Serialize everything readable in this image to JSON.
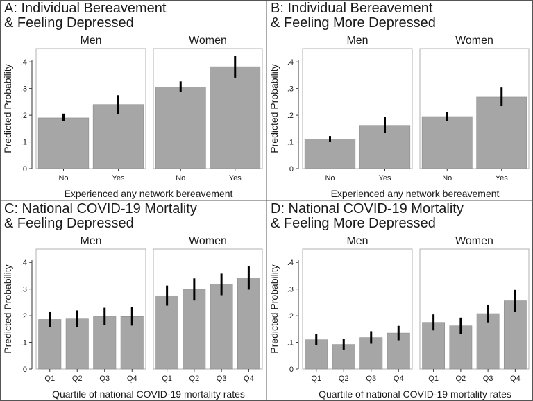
{
  "figure": {
    "y_axis_title": "Predicted Probability",
    "y_ticks": [
      0,
      0.1,
      0.2,
      0.3,
      0.4
    ],
    "y_tick_labels": [
      "0",
      ".1",
      ".2",
      ".3",
      ".4"
    ],
    "colors": {
      "bar": "#a6a6a6",
      "bar_edge": "#8c8c8c",
      "error": "#000000",
      "border": "#555555"
    }
  },
  "chart_data": [
    {
      "type": "bar",
      "id": "A",
      "title_line1": "A: Individual Bereavement",
      "title_line2": "& Feeling Depressed",
      "xlabel": "Experienced any network bereavement",
      "ylabel": "Predicted Probability",
      "ylim": [
        0,
        0.45
      ],
      "categories": [
        "No",
        "Yes"
      ],
      "series": [
        {
          "name": "Men",
          "values": [
            0.19,
            0.24
          ],
          "ci_low": [
            0.178,
            0.203
          ],
          "ci_high": [
            0.206,
            0.275
          ]
        },
        {
          "name": "Women",
          "values": [
            0.306,
            0.382
          ],
          "ci_low": [
            0.287,
            0.341
          ],
          "ci_high": [
            0.327,
            0.423
          ]
        }
      ]
    },
    {
      "type": "bar",
      "id": "B",
      "title_line1": "B: Individual Bereavement",
      "title_line2": "& Feeling More Depressed",
      "xlabel": "Experienced any network bereavement",
      "ylabel": "Predicted Probability",
      "ylim": [
        0,
        0.45
      ],
      "categories": [
        "No",
        "Yes"
      ],
      "series": [
        {
          "name": "Men",
          "values": [
            0.11,
            0.162
          ],
          "ci_low": [
            0.1,
            0.133
          ],
          "ci_high": [
            0.122,
            0.193
          ]
        },
        {
          "name": "Women",
          "values": [
            0.195,
            0.268
          ],
          "ci_low": [
            0.178,
            0.234
          ],
          "ci_high": [
            0.213,
            0.304
          ]
        }
      ]
    },
    {
      "type": "bar",
      "id": "C",
      "title_line1": "C: National COVID-19 Mortality",
      "title_line2": "& Feeling Depressed",
      "xlabel": "Quartile of national COVID-19 mortality rates",
      "ylabel": "Predicted Probability",
      "ylim": [
        0,
        0.45
      ],
      "categories": [
        "Q1",
        "Q2",
        "Q3",
        "Q4"
      ],
      "series": [
        {
          "name": "Men",
          "values": [
            0.186,
            0.188,
            0.198,
            0.197
          ],
          "ci_low": [
            0.158,
            0.157,
            0.166,
            0.163
          ],
          "ci_high": [
            0.216,
            0.22,
            0.23,
            0.232
          ]
        },
        {
          "name": "Women",
          "values": [
            0.275,
            0.298,
            0.318,
            0.342
          ],
          "ci_low": [
            0.238,
            0.257,
            0.277,
            0.298
          ],
          "ci_high": [
            0.313,
            0.34,
            0.358,
            0.386
          ]
        }
      ]
    },
    {
      "type": "bar",
      "id": "D",
      "title_line1": "D: National COVID-19 Mortality",
      "title_line2": "& Feeling More Depressed",
      "xlabel": "Quartile of national COVID-19 mortality rates",
      "ylabel": "Predicted Probability",
      "ylim": [
        0,
        0.45
      ],
      "categories": [
        "Q1",
        "Q2",
        "Q3",
        "Q4"
      ],
      "series": [
        {
          "name": "Men",
          "values": [
            0.11,
            0.092,
            0.118,
            0.135
          ],
          "ci_low": [
            0.09,
            0.073,
            0.095,
            0.108
          ],
          "ci_high": [
            0.132,
            0.112,
            0.142,
            0.162
          ]
        },
        {
          "name": "Women",
          "values": [
            0.175,
            0.162,
            0.208,
            0.256
          ],
          "ci_low": [
            0.145,
            0.132,
            0.175,
            0.215
          ],
          "ci_high": [
            0.205,
            0.193,
            0.242,
            0.297
          ]
        }
      ]
    }
  ]
}
